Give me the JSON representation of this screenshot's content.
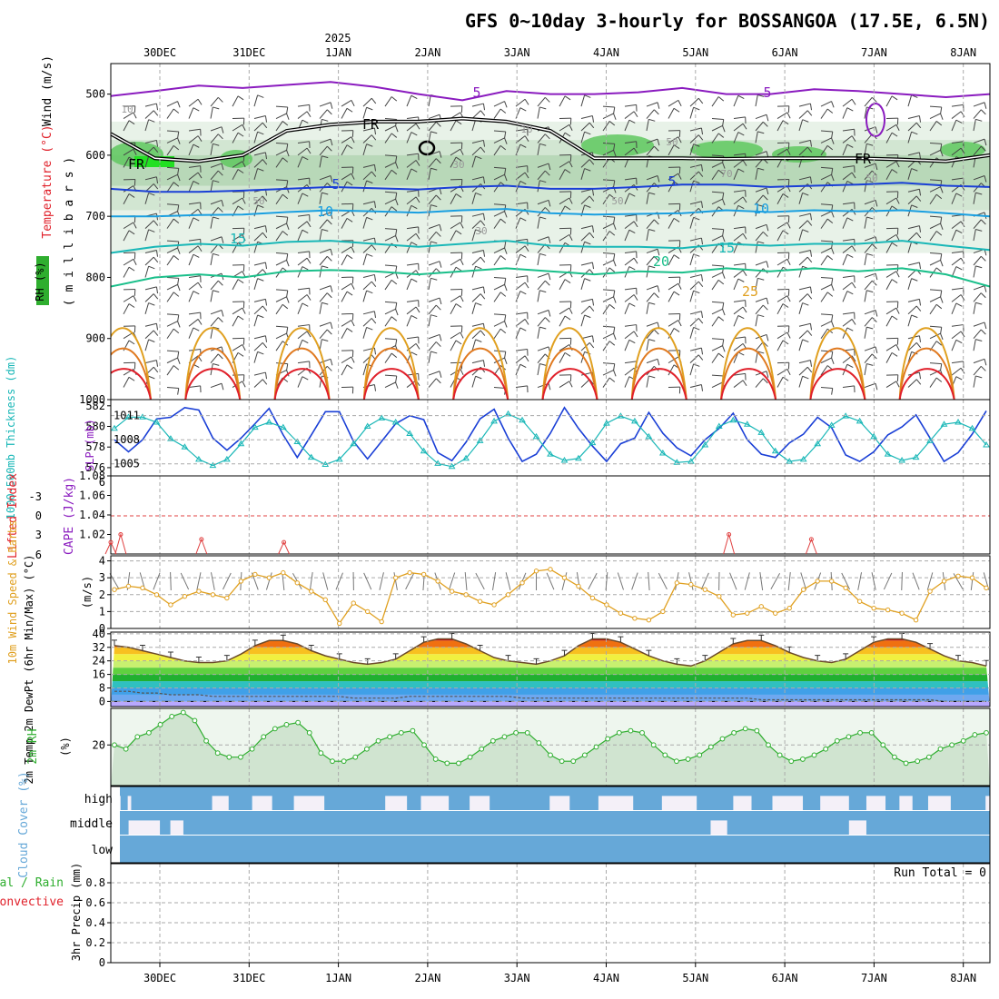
{
  "chart_data": {
    "type": "line",
    "title": "GFS 0~10day 3-hourly for BOSSANGOA (17.5E, 6.5N)",
    "year_label": "2025",
    "days": [
      "30DEC",
      "31DEC",
      "1JAN",
      "2JAN",
      "3JAN",
      "4JAN",
      "5JAN",
      "6JAN",
      "7JAN",
      "8JAN"
    ],
    "colors": {
      "purple": "#8a1bbf",
      "blue": "#1a3fd6",
      "lightblue": "#1a9fe0",
      "teal": "#19b7b7",
      "green": "#1abf8a",
      "orange": "#e0a020",
      "darkorange": "#e07a20",
      "red": "#e0202a",
      "rhgreen": "#2fae2f",
      "cloud": "#66a8d8"
    },
    "panels": {
      "upper_air": {
        "ylabel_wind": "Wind (m/s)",
        "ylabel_temp": "Temperature (°C)",
        "ylabel_pressure": "( m i l l i b a r s )",
        "ylabel_rh": "RH (%)",
        "y_ticks": [
          500,
          600,
          700,
          800,
          900,
          1000
        ],
        "ylim": [
          450,
          1000
        ],
        "contour_labels": [
          "5",
          "5",
          "FR",
          "FR",
          "FR",
          "5",
          "5",
          "10",
          "10",
          "15",
          "15",
          "20",
          "25",
          "10",
          "50",
          "30",
          "50",
          "70",
          "50",
          "50",
          "30",
          "10"
        ],
        "isotherms": [
          {
            "label": "-5",
            "color": "purple",
            "levels": [
              503,
              495,
              486,
              490,
              485,
              480,
              488,
              500,
              510,
              495,
              500,
              500,
              497,
              490,
              500,
              500,
              492,
              495,
              500,
              505,
              500
            ]
          },
          {
            "label": "FR",
            "color": "black",
            "levels": [
              565,
              605,
              610,
              600,
              560,
              550,
              545,
              545,
              540,
              545,
              560,
              605,
              605,
              605,
              606,
              605,
              605,
              605,
              607,
              610,
              600
            ]
          },
          {
            "label": "5",
            "color": "blue",
            "levels": [
              655,
              660,
              660,
              658,
              655,
              652,
              654,
              656,
              652,
              650,
              655,
              655,
              652,
              648,
              648,
              652,
              650,
              648,
              645,
              650,
              652
            ]
          },
          {
            "label": "10",
            "color": "lightblue",
            "levels": [
              700,
              700,
              698,
              697,
              693,
              690,
              692,
              694,
              690,
              688,
              695,
              697,
              696,
              695,
              690,
              693,
              690,
              692,
              690,
              695,
              700
            ]
          },
          {
            "label": "15",
            "color": "teal",
            "levels": [
              760,
              750,
              745,
              748,
              742,
              740,
              745,
              750,
              745,
              740,
              748,
              750,
              750,
              752,
              745,
              748,
              745,
              745,
              740,
              748,
              755
            ]
          },
          {
            "label": "20",
            "color": "green",
            "levels": [
              815,
              800,
              795,
              800,
              790,
              788,
              790,
              795,
              790,
              785,
              790,
              795,
              790,
              792,
              785,
              790,
              785,
              790,
              785,
              795,
              815
            ]
          }
        ]
      },
      "thickness_slp": {
        "ylabel_thickness": "1000-500mb Thickness (dm)",
        "ylabel_slp": "SLP (mb)",
        "thickness_ticks": [
          576,
          578,
          580,
          582
        ],
        "slp_ticks": [
          1005,
          1008,
          1011
        ],
        "slp_values": [
          1008.0,
          1006.5,
          1008.0,
          1010.6,
          1010.8,
          1012.0,
          1011.7,
          1008.2,
          1006.7,
          1008.2,
          1010.0,
          1011.9,
          1008.6,
          1005.8,
          1008.6,
          1011.5,
          1011.5,
          1007.8,
          1005.6,
          1007.8,
          1010.0,
          1011.0,
          1010.5,
          1006.4,
          1005.4,
          1007.7,
          1010.6,
          1011.8,
          1008.2,
          1005.3,
          1006.2,
          1008.8,
          1012.0,
          1009.4,
          1007.2,
          1005.3,
          1007.5,
          1008.2,
          1011.4,
          1008.8,
          1007.0,
          1006.0,
          1008.0,
          1009.4,
          1011.3,
          1008.0,
          1006.2,
          1005.8,
          1007.6,
          1008.7,
          1010.8,
          1009.5,
          1006.1,
          1005.3,
          1006.5,
          1008.6,
          1009.6,
          1011.1,
          1008.2,
          1005.3,
          1006.4,
          1008.7,
          1011.6
        ],
        "thickness_values": [
          579.8,
          580.9,
          580.9,
          580.4,
          578.8,
          578.0,
          576.8,
          576.2,
          576.8,
          578.3,
          579.9,
          580.4,
          579.9,
          578.5,
          577.0,
          576.3,
          576.8,
          578.3,
          580.0,
          580.8,
          580.4,
          579.3,
          577.6,
          576.4,
          576.1,
          576.9,
          578.6,
          580.5,
          581.2,
          580.6,
          579.0,
          577.3,
          576.7,
          576.9,
          578.4,
          580.3,
          581.0,
          580.5,
          579.0,
          577.4,
          576.5,
          576.6,
          578.2,
          580.0,
          580.6,
          580.2,
          579.4,
          577.6,
          576.6,
          576.8,
          578.3,
          580.1,
          581.0,
          580.5,
          579.0,
          577.3,
          576.7,
          577.0,
          578.6,
          580.2,
          580.4,
          579.8,
          578.2
        ]
      },
      "stability": {
        "ylabel_li": "Lifted Index",
        "ylabel_cape": "CAPE (J/kg)",
        "li_ticks": [
          "-3",
          "0",
          "3",
          "6"
        ],
        "li_top_tick": "6",
        "cape_ticks": [
          1.02,
          1.04,
          1.06,
          1.08
        ],
        "cape_points": [
          [
            0,
            1.012
          ],
          [
            0.6,
            1.02
          ],
          [
            5.5,
            1.015
          ],
          [
            10.5,
            1.012
          ],
          [
            37.5,
            1.02
          ],
          [
            42.5,
            1.015
          ]
        ]
      },
      "wind10m": {
        "ylabel": "10m Wind Speed & Barbs",
        "unit": "(m/s)",
        "y_ticks": [
          0,
          1,
          2,
          3,
          4
        ],
        "values": [
          2.3,
          2.5,
          2.4,
          2.0,
          1.4,
          1.9,
          2.2,
          2.0,
          1.8,
          2.8,
          3.2,
          3.0,
          3.3,
          2.7,
          2.2,
          1.7,
          0.3,
          1.5,
          1.0,
          0.4,
          3.0,
          3.3,
          3.2,
          2.8,
          2.2,
          2.0,
          1.6,
          1.4,
          2.0,
          2.7,
          3.4,
          3.5,
          3.0,
          2.5,
          1.8,
          1.4,
          0.9,
          0.6,
          0.5,
          1.0,
          2.7,
          2.6,
          2.3,
          1.9,
          0.8,
          0.9,
          1.3,
          0.9,
          1.2,
          2.3,
          2.8,
          2.8,
          2.4,
          1.6,
          1.2,
          1.1,
          0.9,
          0.5,
          2.2,
          2.8,
          3.1,
          3.0,
          2.4
        ]
      },
      "temp2m": {
        "ylabel": "2m Temp 2m DewPt (6hr Min/Max) (°C)",
        "y_ticks": [
          0,
          8,
          16,
          24,
          32,
          40
        ],
        "temp_values": [
          33,
          32,
          30,
          28,
          26,
          24,
          23,
          23,
          24,
          28,
          33,
          36,
          36,
          34,
          30,
          27,
          25,
          23,
          22,
          23,
          25,
          30,
          35,
          37,
          37,
          34,
          30,
          26,
          24,
          23,
          22,
          24,
          27,
          33,
          37,
          37,
          35,
          31,
          27,
          24,
          22,
          21,
          24,
          29,
          34,
          36,
          36,
          33,
          29,
          26,
          24,
          23,
          25,
          30,
          35,
          37,
          37,
          35,
          31,
          27,
          24,
          23,
          21
        ],
        "dewpoint_values": [
          6,
          6,
          5,
          5,
          4,
          4,
          4,
          3,
          3,
          3,
          3,
          3,
          3,
          3,
          3,
          3,
          3,
          2,
          2,
          2,
          2,
          3,
          3,
          3,
          3,
          3,
          3,
          3,
          3,
          2,
          2,
          2,
          2,
          2,
          2,
          2,
          2,
          2,
          2,
          2,
          2,
          2,
          2,
          2,
          2,
          2,
          1,
          1,
          1,
          1,
          1,
          1,
          1,
          1,
          1,
          1,
          1,
          1,
          1,
          0,
          0,
          0,
          0
        ]
      },
      "rh2m": {
        "ylabel": "2m RH",
        "unit": "(%)",
        "y_ticks": [
          20
        ],
        "values": [
          20,
          18,
          24,
          26,
          30,
          34,
          36,
          32,
          22,
          16,
          14,
          14,
          18,
          24,
          28,
          30,
          31,
          26,
          16,
          12,
          12,
          14,
          18,
          22,
          24,
          26,
          27,
          20,
          13,
          11,
          11,
          14,
          18,
          22,
          24,
          26,
          26,
          21,
          15,
          12,
          12,
          15,
          19,
          23,
          26,
          27,
          26,
          20,
          15,
          12,
          13,
          15,
          19,
          23,
          26,
          28,
          27,
          20,
          15,
          12,
          13,
          15,
          18,
          22,
          24,
          26,
          26,
          20,
          14,
          11,
          12,
          14,
          18,
          20,
          22,
          25,
          26
        ]
      },
      "cloud": {
        "ylabel": "Cloud Cover (%)",
        "levels": [
          "high",
          "middle",
          "low"
        ],
        "high_gaps": [
          [
            0,
            0.08
          ],
          [
            0.9,
            1.3
          ],
          [
            10.6,
            12.5
          ],
          [
            15.2,
            17.5
          ],
          [
            20.0,
            23.5
          ],
          [
            30.5,
            33.0
          ],
          [
            34.6,
            37.8
          ],
          [
            40.2,
            42.5
          ],
          [
            49.4,
            51.7
          ],
          [
            55.0,
            59.0
          ],
          [
            62.3,
            66.3
          ],
          [
            70.5,
            72.6
          ],
          [
            75.0,
            78.5
          ],
          [
            80.5,
            83.8
          ],
          [
            85.8,
            88.0
          ],
          [
            89.6,
            91.1
          ],
          [
            92.9,
            95.5
          ],
          [
            99.5,
            100.0
          ]
        ],
        "middle_gaps": [
          [
            1.0,
            4.6
          ],
          [
            5.8,
            7.3
          ],
          [
            67.9,
            69.8
          ],
          [
            83.8,
            85.8
          ]
        ]
      },
      "precip": {
        "ylabel": "3hr Precip (mm)",
        "legend_total": "Total / Rain",
        "legend_conv": "Convective",
        "run_total": "Run Total = 0",
        "y_ticks": [
          "0",
          "0.2",
          "0.4",
          "0.6",
          "0.8"
        ],
        "values": []
      }
    }
  }
}
